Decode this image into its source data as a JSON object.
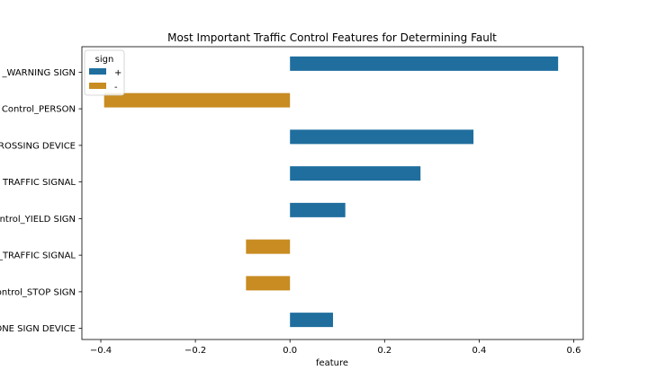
{
  "chart_data": {
    "type": "bar",
    "orientation": "horizontal",
    "title": "Most Important Traffic Control Features for Determining Fault",
    "xlabel": "feature",
    "ylabel": "",
    "xlim": [
      -0.44,
      0.62
    ],
    "xticks": [
      -0.4,
      -0.2,
      0.0,
      0.2,
      0.4,
      0.6
    ],
    "xtick_labels": [
      "−0.4",
      "−0.2",
      "0.0",
      "0.2",
      "0.4",
      "0.6"
    ],
    "categories": [
      "_WARNING SIGN",
      "Control_PERSON",
      "ROSSING DEVICE",
      "TRAFFIC SIGNAL",
      "ntrol_YIELD SIGN",
      "_TRAFFIC SIGNAL",
      "ontrol_STOP SIGN",
      "ONE SIGN DEVICE"
    ],
    "values": [
      0.567,
      -0.393,
      0.388,
      0.276,
      0.117,
      -0.093,
      -0.093,
      0.091
    ],
    "signs": [
      "+",
      "-",
      "+",
      "+",
      "+",
      "-",
      "-",
      "+"
    ],
    "legend": {
      "title": "sign",
      "placement": "top-left",
      "entries": [
        {
          "label": "+",
          "color": "#1f6e9e"
        },
        {
          "label": "-",
          "color": "#c88c22"
        }
      ]
    },
    "colors": {
      "+": "#1f6e9e",
      "-": "#c88c22"
    },
    "grid": false
  }
}
